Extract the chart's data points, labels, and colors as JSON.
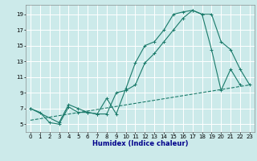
{
  "xlabel": "Humidex (Indice chaleur)",
  "bg_color": "#cceaea",
  "grid_color": "#ffffff",
  "line_color": "#1a7a6a",
  "xlim": [
    -0.5,
    23.5
  ],
  "ylim": [
    4.0,
    20.2
  ],
  "xticks": [
    0,
    1,
    2,
    3,
    4,
    5,
    6,
    7,
    8,
    9,
    10,
    11,
    12,
    13,
    14,
    15,
    16,
    17,
    18,
    19,
    20,
    21,
    22,
    23
  ],
  "yticks": [
    5,
    7,
    9,
    11,
    13,
    15,
    17,
    19
  ],
  "line1_x": [
    0,
    1,
    2,
    3,
    4,
    5,
    6,
    7,
    8,
    9,
    10,
    11,
    12,
    13,
    14,
    15,
    16,
    17,
    18,
    19,
    20,
    21,
    22
  ],
  "line1_y": [
    7.0,
    6.5,
    5.2,
    5.0,
    7.2,
    6.5,
    6.5,
    6.3,
    8.3,
    6.3,
    9.5,
    12.8,
    15.0,
    15.5,
    17.0,
    19.0,
    19.3,
    19.5,
    19.0,
    14.5,
    9.3,
    12.0,
    10.0
  ],
  "line2_x": [
    0,
    3,
    4,
    5,
    6,
    7,
    8,
    9,
    10,
    11,
    12,
    13,
    14,
    15,
    16,
    17,
    18,
    19,
    20,
    21,
    22,
    23
  ],
  "line2_y": [
    7.0,
    5.2,
    7.5,
    7.0,
    6.5,
    6.3,
    6.3,
    9.0,
    9.3,
    10.0,
    12.8,
    14.0,
    15.5,
    17.0,
    18.5,
    19.5,
    19.0,
    19.0,
    15.5,
    14.5,
    12.0,
    10.0
  ],
  "line3_x": [
    0,
    23
  ],
  "line3_y": [
    5.5,
    10.0
  ],
  "xlabel_color": "#00008b",
  "xlabel_fontsize": 6.0,
  "tick_fontsize": 5.0,
  "lw": 0.8,
  "marker_size": 2.5
}
